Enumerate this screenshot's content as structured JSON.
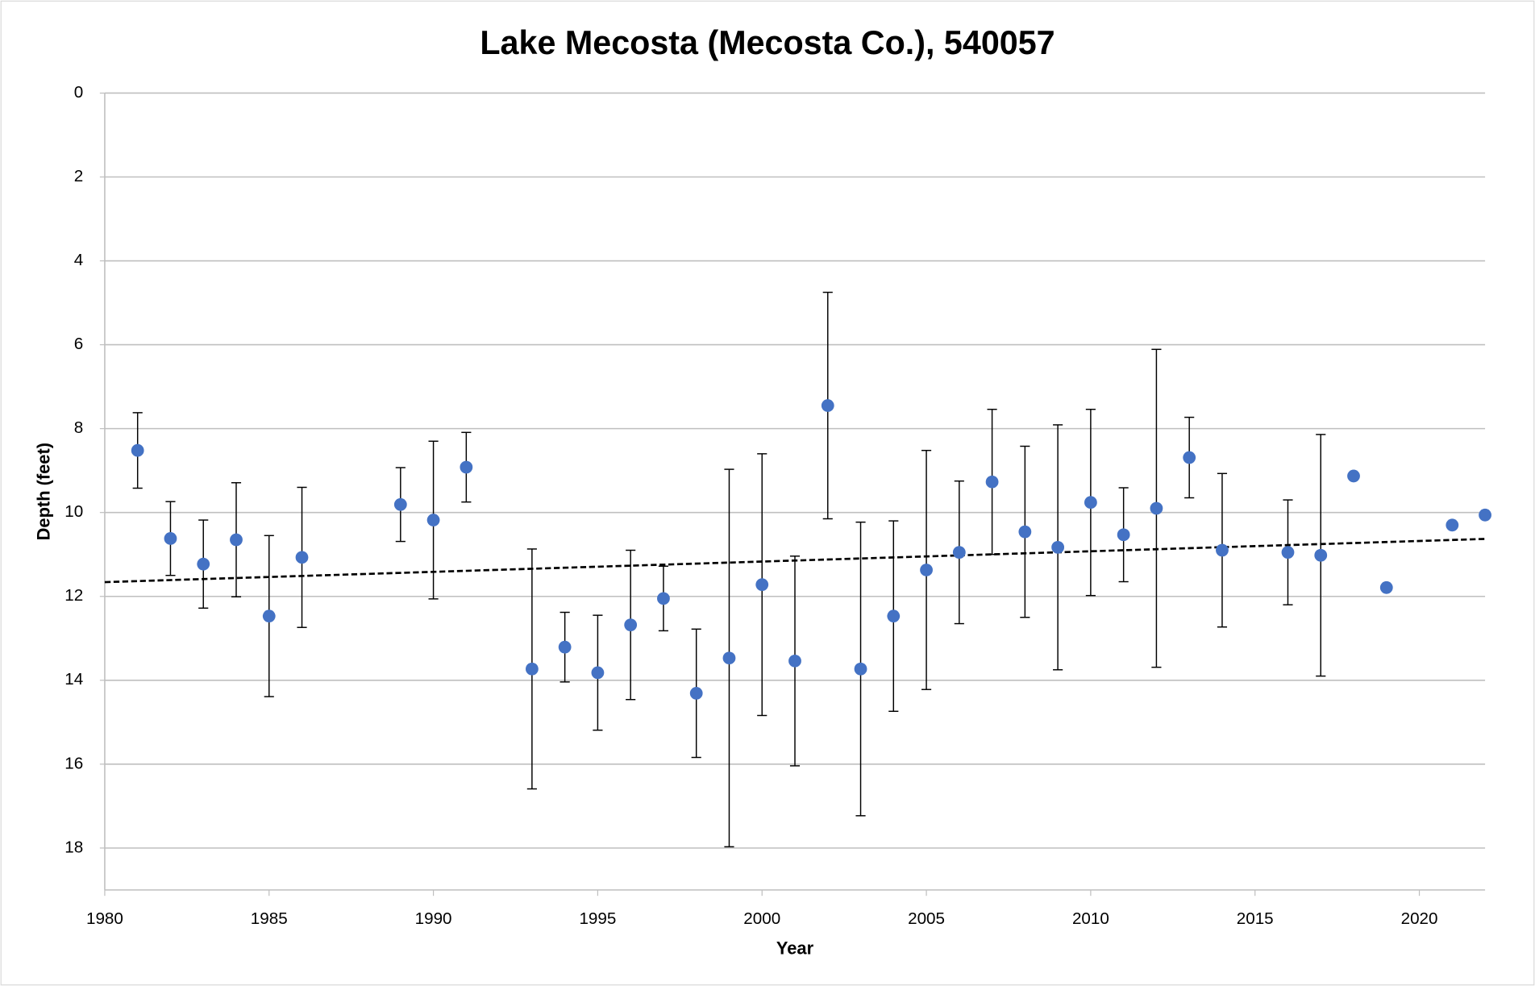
{
  "chart_data": {
    "type": "scatter",
    "title": "Lake Mecosta (Mecosta Co.), 540057",
    "x_label": "Year",
    "y_label": "Depth (feet)",
    "xlim": [
      1980,
      2022
    ],
    "xticks": [
      1980,
      1985,
      1990,
      1995,
      2000,
      2005,
      2010,
      2015,
      2020
    ],
    "ylim": [
      0,
      19
    ],
    "yticks": [
      0,
      2,
      4,
      6,
      8,
      10,
      12,
      14,
      16,
      18
    ],
    "y_inverted": true,
    "grid": true,
    "series": [
      {
        "color": "#4472c4",
        "x": [
          1981,
          1982,
          1983,
          1984,
          1985,
          1986,
          1989,
          1990,
          1991,
          1993,
          1994,
          1995,
          1996,
          1997,
          1998,
          1999,
          2000,
          2001,
          2002,
          2003,
          2004,
          2005,
          2006,
          2007,
          2008,
          2009,
          2010,
          2011,
          2012,
          2013,
          2014,
          2016,
          2017,
          2018,
          2019,
          2021,
          2022
        ],
        "values": [
          8.52,
          10.62,
          11.23,
          10.65,
          12.47,
          11.07,
          9.81,
          10.18,
          8.92,
          13.73,
          13.21,
          13.82,
          12.68,
          12.05,
          14.31,
          13.47,
          11.72,
          13.54,
          7.45,
          13.73,
          12.47,
          11.37,
          10.95,
          9.27,
          10.46,
          10.83,
          9.76,
          10.53,
          9.9,
          8.69,
          10.9,
          10.95,
          11.02,
          9.13,
          11.79,
          10.3,
          10.06
        ],
        "errors": [
          0.9,
          0.88,
          1.05,
          1.36,
          1.92,
          1.67,
          0.88,
          1.88,
          0.83,
          2.86,
          0.83,
          1.37,
          1.78,
          0.77,
          1.53,
          4.5,
          3.12,
          2.5,
          2.7,
          3.5,
          2.27,
          2.85,
          1.7,
          1.73,
          2.04,
          2.92,
          2.22,
          1.12,
          3.79,
          0.96,
          1.83,
          1.25,
          2.88,
          null,
          null,
          null,
          null
        ]
      }
    ],
    "trendline": {
      "color": "#000000",
      "x": [
        1980,
        2022
      ],
      "values": [
        11.66,
        10.63
      ]
    }
  }
}
